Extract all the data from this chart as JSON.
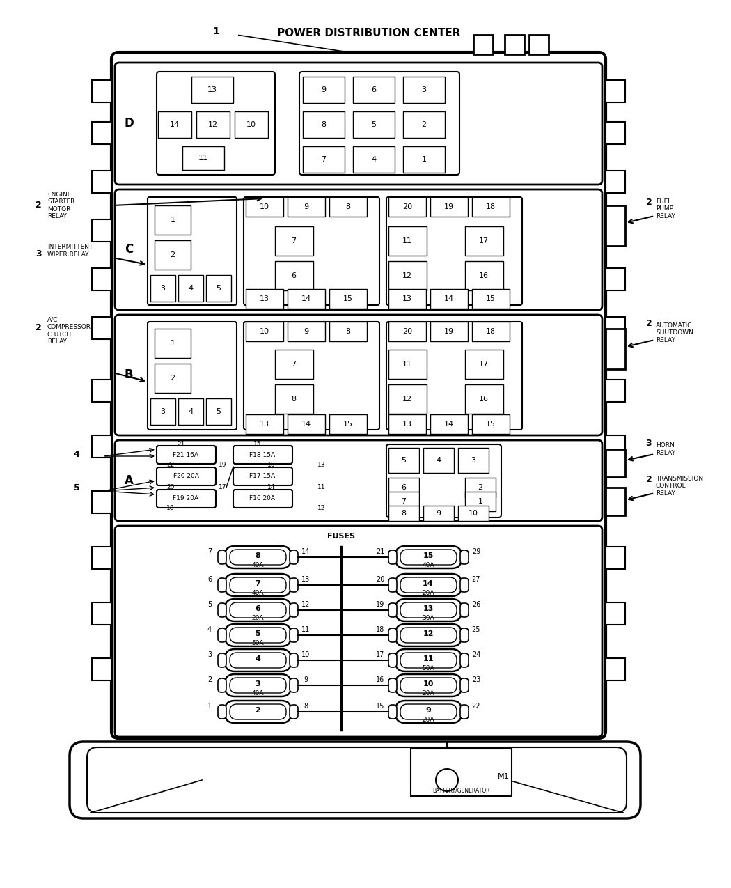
{
  "title": "POWER DISTRIBUTION CENTER",
  "bg_color": "#ffffff",
  "fig_width": 10.5,
  "fig_height": 12.75,
  "left_fuses": [
    [
      "7",
      "8",
      "14",
      "40A",
      800
    ],
    [
      "6",
      "7",
      "13",
      "40A",
      840
    ],
    [
      "5",
      "6",
      "12",
      "20A",
      876
    ],
    [
      "4",
      "5",
      "11",
      "50A",
      912
    ],
    [
      "3",
      "4",
      "10",
      "",
      948
    ],
    [
      "2",
      "3",
      "9",
      "40A",
      984
    ],
    [
      "1",
      "2",
      "8",
      "",
      1022
    ]
  ],
  "right_fuses": [
    [
      "21",
      "15",
      "29",
      "40A",
      800
    ],
    [
      "20",
      "14",
      "27",
      "20A",
      840
    ],
    [
      "19",
      "13",
      "26",
      "30A",
      876
    ],
    [
      "18",
      "12",
      "25",
      "",
      912
    ],
    [
      "17",
      "11",
      "24",
      "50A",
      948
    ],
    [
      "16",
      "10",
      "23",
      "20A",
      984
    ],
    [
      "15",
      "9",
      "22",
      "20A",
      1022
    ]
  ]
}
